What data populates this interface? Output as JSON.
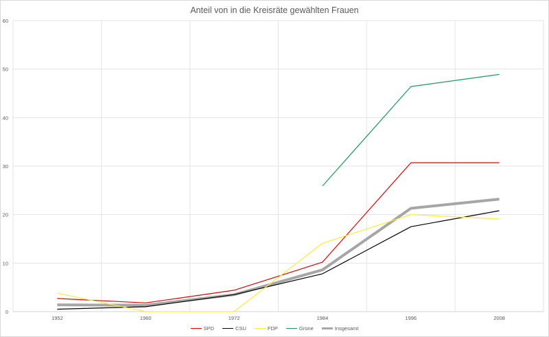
{
  "chart_data": {
    "type": "line",
    "title": "Anteil von in die Kreisräte gewählten Frauen",
    "xlabel": "",
    "ylabel": "",
    "categories": [
      "1952",
      "1960",
      "1972",
      "1984",
      "1996",
      "2008"
    ],
    "ylim": [
      0,
      60
    ],
    "yticks": [
      "0",
      "10",
      "20",
      "30",
      "40",
      "50",
      "60"
    ],
    "grid": true,
    "legend_position": "bottom",
    "series": [
      {
        "name": "SPD",
        "color": "#e00000",
        "width": 1.2,
        "values": [
          2.7,
          1.8,
          4.4,
          10.2,
          30.7,
          30.7
        ]
      },
      {
        "name": "CSU",
        "color": "#000000",
        "width": 1.2,
        "values": [
          0.5,
          1.0,
          3.5,
          7.8,
          17.5,
          20.8
        ]
      },
      {
        "name": "FDP",
        "color": "#ffeb3b",
        "width": 1.2,
        "values": [
          3.8,
          0,
          0,
          14.1,
          20.0,
          19.1
        ]
      },
      {
        "name": "Grüne",
        "color": "#1a9a5a",
        "width": 1.2,
        "values": [
          null,
          null,
          null,
          25.9,
          46.4,
          48.9
        ]
      },
      {
        "name": "Insgesamt",
        "color": "#a6a6a6",
        "width": 4,
        "values": [
          1.4,
          1.3,
          3.5,
          8.6,
          21.3,
          23.2
        ]
      }
    ]
  }
}
